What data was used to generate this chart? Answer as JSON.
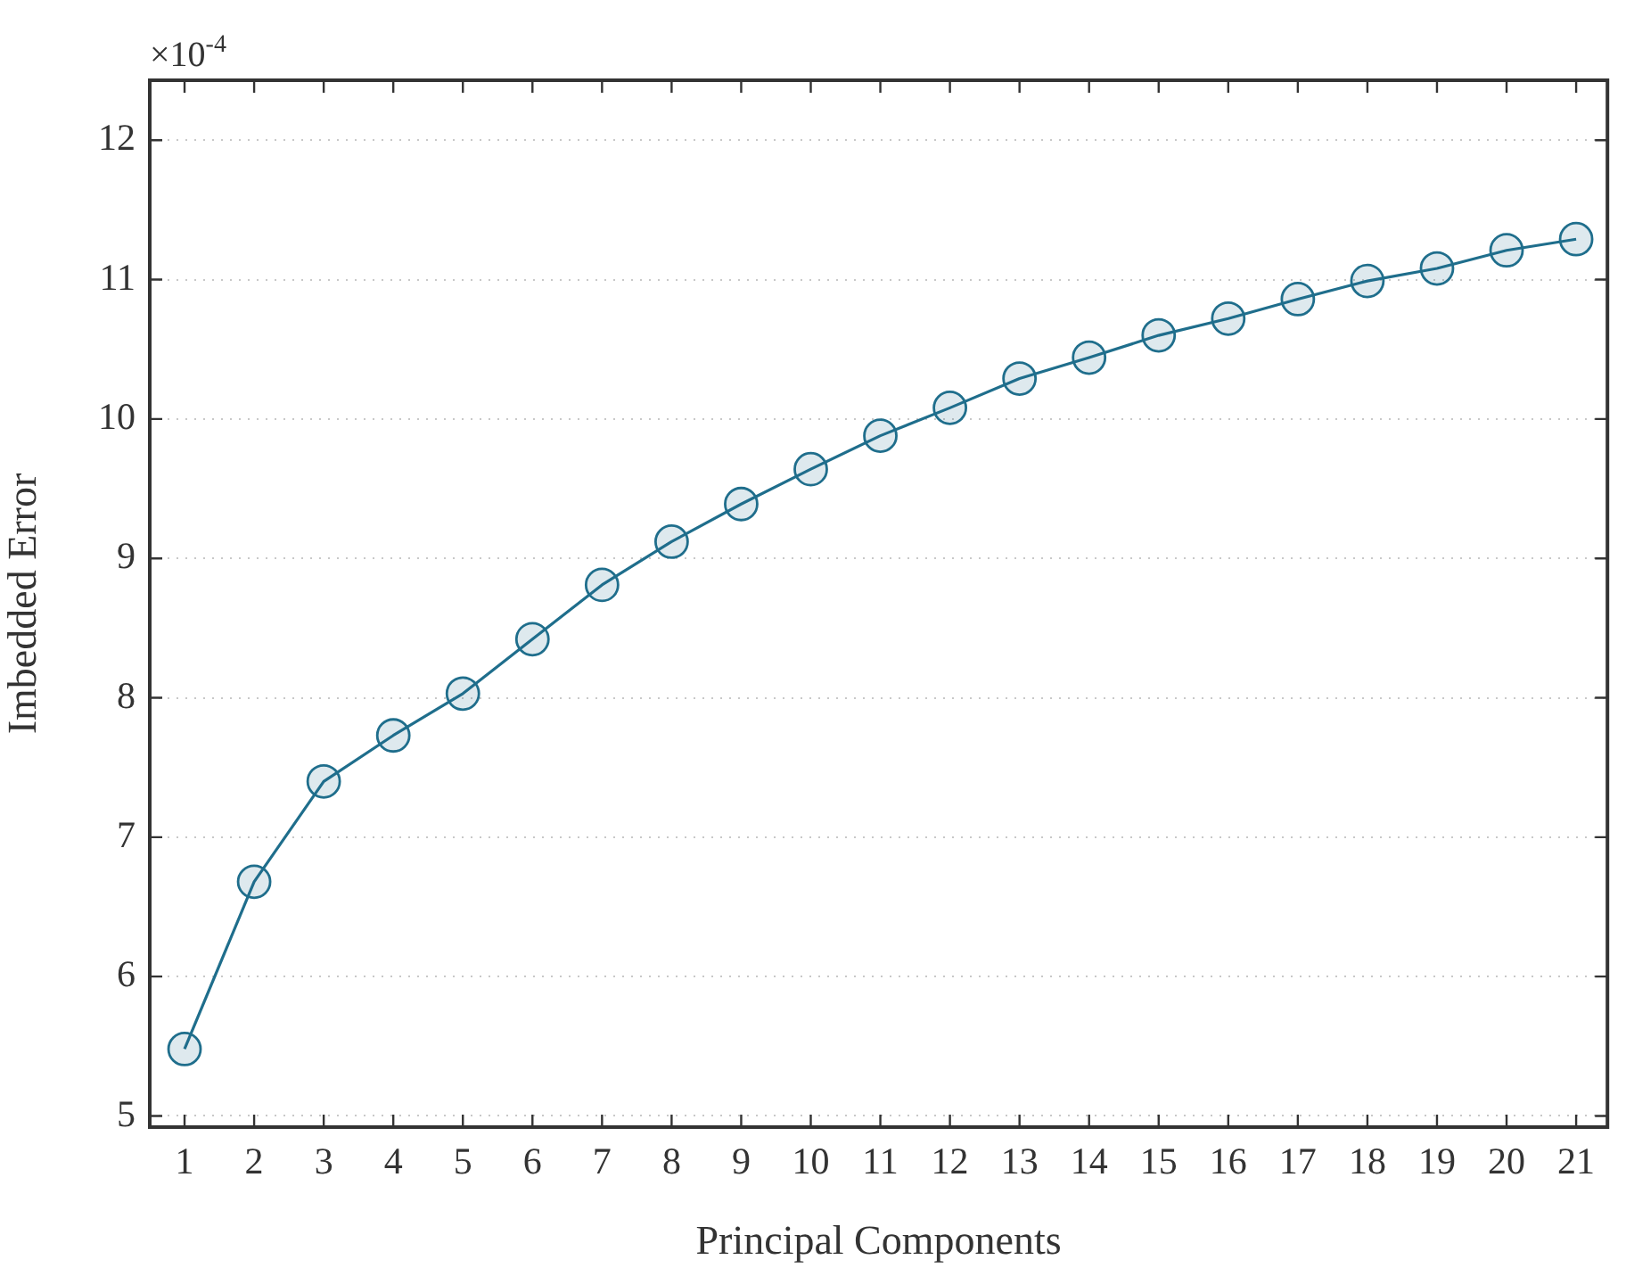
{
  "chart_data": {
    "type": "line",
    "xlabel": "Principal Components",
    "ylabel": "Imbedded Error",
    "annotations": [
      "×10$^{-4}$"
    ],
    "x": [
      1,
      2,
      3,
      4,
      5,
      6,
      7,
      8,
      9,
      10,
      11,
      12,
      13,
      14,
      15,
      16,
      17,
      18,
      19,
      20,
      21
    ],
    "series": [
      {
        "color": "#1f6e8c",
        "values": [
          5.48,
          6.68,
          7.4,
          7.73,
          8.03,
          8.42,
          8.81,
          9.12,
          9.39,
          9.64,
          9.88,
          10.08,
          10.29,
          10.44,
          10.6,
          10.72,
          10.86,
          10.99,
          11.08,
          11.21,
          11.29
        ]
      }
    ],
    "xlim": [
      0.5,
      21.45
    ],
    "xticks": [
      1,
      2,
      3,
      4,
      5,
      6,
      7,
      8,
      9,
      10,
      11,
      12,
      13,
      14,
      15,
      16,
      17,
      18,
      19,
      20,
      21
    ],
    "ylim": [
      4.92,
      12.43
    ],
    "yticks": [
      5,
      6,
      7,
      8,
      9,
      10,
      11,
      12
    ],
    "grid": "y",
    "marker": "circle",
    "line_style": "solid"
  }
}
